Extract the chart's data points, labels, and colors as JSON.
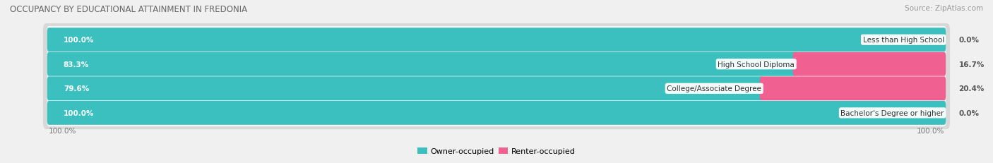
{
  "title": "OCCUPANCY BY EDUCATIONAL ATTAINMENT IN FREDONIA",
  "source": "Source: ZipAtlas.com",
  "categories": [
    "Less than High School",
    "High School Diploma",
    "College/Associate Degree",
    "Bachelor's Degree or higher"
  ],
  "owner_pct": [
    100.0,
    83.3,
    79.6,
    100.0
  ],
  "renter_pct": [
    0.0,
    16.7,
    20.4,
    0.0
  ],
  "owner_color": "#3BBFBF",
  "renter_color": "#F06090",
  "renter_color_0": "#F4A0C0",
  "bg_color": "#f0f0f0",
  "row_bg_color": "#e8e8e8",
  "row_inner_color": "#f8f8f8",
  "title_fontsize": 8.5,
  "label_fontsize": 7.5,
  "pct_fontsize": 7.5,
  "axis_fontsize": 7.5,
  "legend_fontsize": 8,
  "source_fontsize": 7.5,
  "bar_height": 0.62,
  "total_width": 100.0,
  "x_left_label": "100.0%",
  "x_right_label": "100.0%"
}
